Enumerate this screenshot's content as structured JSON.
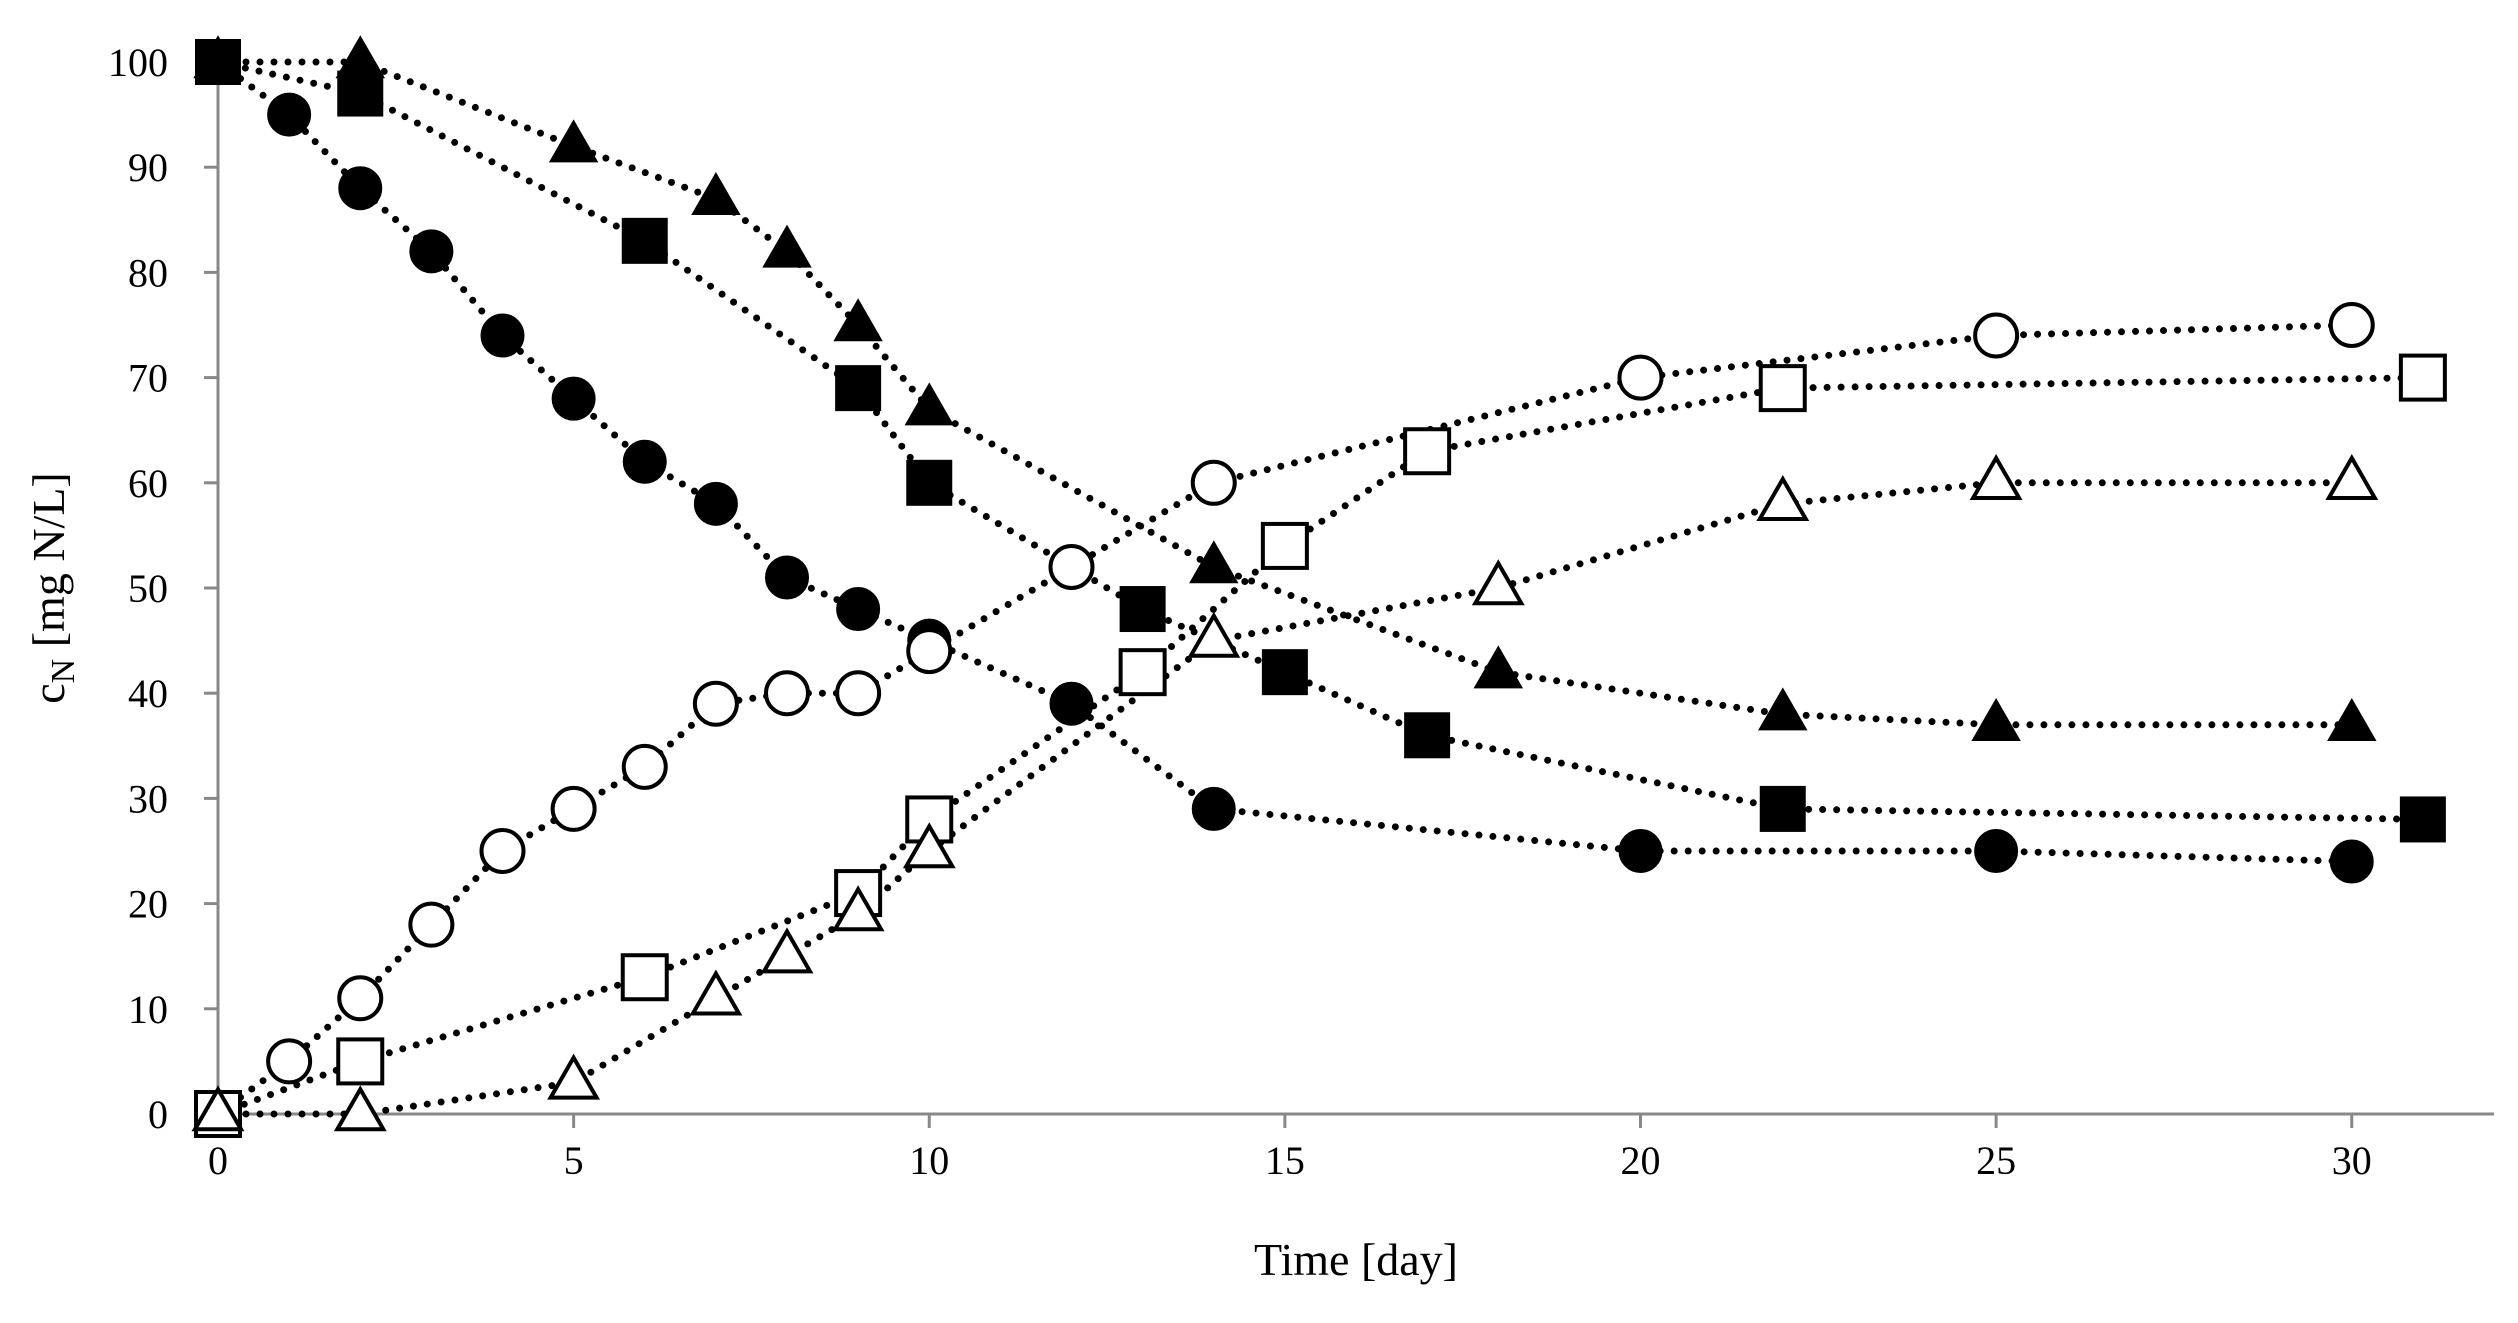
{
  "chart_data": {
    "type": "scatter",
    "title": "",
    "xlabel": "Time [day]",
    "ylabel_main": "c",
    "ylabel_sub": "N",
    "ylabel_rest": " [mg N/L]",
    "xlim": [
      0,
      32
    ],
    "ylim": [
      0,
      100
    ],
    "xticks": [
      0,
      5,
      10,
      15,
      20,
      25,
      30
    ],
    "yticks": [
      0,
      10,
      20,
      30,
      40,
      50,
      60,
      70,
      80,
      90,
      100
    ],
    "grid": false,
    "legend": "none",
    "series": [
      {
        "name": "filled-circle",
        "marker": "circle",
        "filled": true,
        "points": [
          [
            0,
            100
          ],
          [
            1,
            95
          ],
          [
            2,
            88
          ],
          [
            3,
            82
          ],
          [
            4,
            74
          ],
          [
            5,
            68
          ],
          [
            6,
            62
          ],
          [
            7,
            58
          ],
          [
            8,
            51
          ],
          [
            9,
            48
          ],
          [
            10,
            45
          ],
          [
            12,
            39
          ],
          [
            14,
            29
          ],
          [
            20,
            25
          ],
          [
            25,
            25
          ],
          [
            30,
            24
          ]
        ]
      },
      {
        "name": "filled-square",
        "marker": "square",
        "filled": true,
        "points": [
          [
            0,
            100
          ],
          [
            2,
            97
          ],
          [
            6,
            83
          ],
          [
            9,
            69
          ],
          [
            10,
            60
          ],
          [
            13,
            48
          ],
          [
            15,
            42
          ],
          [
            17,
            36
          ],
          [
            22,
            29
          ],
          [
            31,
            28
          ]
        ]
      },
      {
        "name": "filled-triangle",
        "marker": "triangle",
        "filled": true,
        "points": [
          [
            0,
            100
          ],
          [
            2,
            100
          ],
          [
            5,
            92
          ],
          [
            7,
            87
          ],
          [
            8,
            82
          ],
          [
            9,
            75
          ],
          [
            10,
            67
          ],
          [
            14,
            52
          ],
          [
            18,
            42
          ],
          [
            22,
            38
          ],
          [
            25,
            37
          ],
          [
            30,
            37
          ]
        ]
      },
      {
        "name": "open-circle",
        "marker": "circle",
        "filled": false,
        "points": [
          [
            0,
            0
          ],
          [
            1,
            5
          ],
          [
            2,
            11
          ],
          [
            3,
            18
          ],
          [
            4,
            25
          ],
          [
            5,
            29
          ],
          [
            6,
            33
          ],
          [
            7,
            39
          ],
          [
            8,
            40
          ],
          [
            9,
            40
          ],
          [
            10,
            44
          ],
          [
            12,
            52
          ],
          [
            14,
            60
          ],
          [
            20,
            70
          ],
          [
            25,
            74
          ],
          [
            30,
            75
          ]
        ]
      },
      {
        "name": "open-square",
        "marker": "square",
        "filled": false,
        "points": [
          [
            0,
            0
          ],
          [
            2,
            5
          ],
          [
            6,
            13
          ],
          [
            9,
            21
          ],
          [
            10,
            28
          ],
          [
            13,
            42
          ],
          [
            15,
            54
          ],
          [
            17,
            63
          ],
          [
            22,
            69
          ],
          [
            31,
            70
          ]
        ]
      },
      {
        "name": "open-triangle",
        "marker": "triangle",
        "filled": false,
        "points": [
          [
            0,
            0
          ],
          [
            2,
            0
          ],
          [
            5,
            3
          ],
          [
            7,
            11
          ],
          [
            8,
            15
          ],
          [
            9,
            19
          ],
          [
            10,
            25
          ],
          [
            14,
            45
          ],
          [
            18,
            50
          ],
          [
            22,
            58
          ],
          [
            25,
            60
          ],
          [
            30,
            60
          ]
        ]
      }
    ]
  }
}
